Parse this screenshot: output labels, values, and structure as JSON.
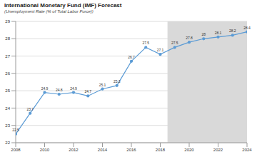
{
  "chart_data": {
    "type": "line",
    "title": "International Monetary Fund (IMF) Forecast",
    "subtitle": "(Unemployment Rate (% of Total Labor Force))",
    "x": [
      2008,
      2009,
      2010,
      2011,
      2012,
      2013,
      2014,
      2015,
      2016,
      2017,
      2018,
      2019,
      2020,
      2021,
      2022,
      2023,
      2024
    ],
    "values": [
      22.5,
      23.7,
      24.9,
      24.8,
      24.9,
      24.7,
      25.1,
      25.3,
      26.7,
      27.5,
      27.1,
      27.5,
      27.8,
      28.0,
      28.1,
      28.2,
      28.4
    ],
    "color": "#5b9bd5",
    "marker": "circle",
    "line_style": "solid",
    "xlim": [
      2008,
      2024
    ],
    "xticks": [
      2008,
      2010,
      2012,
      2014,
      2016,
      2018,
      2020,
      2022,
      2024
    ],
    "ylim": [
      22,
      29
    ],
    "yticks": [
      22,
      23,
      24,
      25,
      26,
      27,
      28,
      29
    ],
    "grid": true,
    "data_labels": true,
    "shaded_region": [
      2018.5,
      2024
    ]
  }
}
